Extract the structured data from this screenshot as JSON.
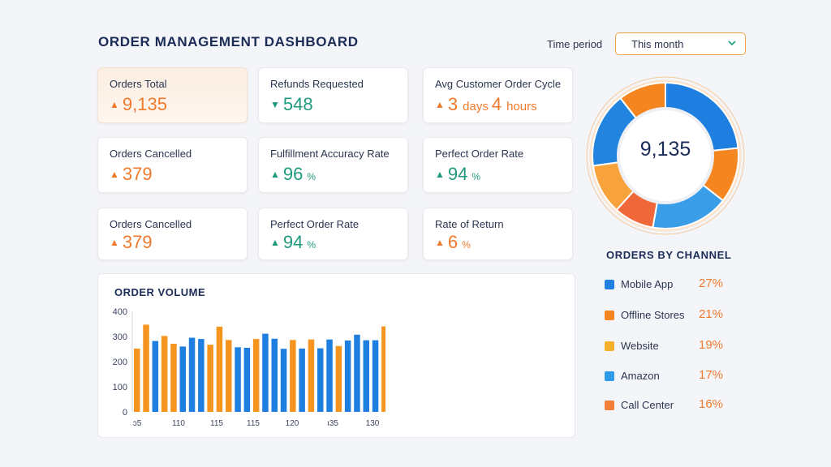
{
  "header": {
    "title": "ORDER MANAGEMENT DASHBOARD",
    "period_label": "Time period",
    "period_value": "This month"
  },
  "cards": [
    {
      "label": "Orders Total",
      "arrow": "▲",
      "value": "9,135",
      "trend": "up"
    },
    {
      "label": "Refunds Requested",
      "arrow": "▼",
      "value": "548",
      "trend": "down"
    },
    {
      "label": "Avg Customer Order Cycle",
      "arrow": "▲",
      "value1": "3",
      "unit1": "days",
      "value2": "4",
      "unit2": "hours",
      "trend": "up"
    },
    {
      "label": "Orders Cancelled",
      "arrow": "▲",
      "value": "379",
      "trend": "up"
    },
    {
      "label": "Fulfillment Accuracy Rate",
      "arrow": "▲",
      "value": "96",
      "unit": "%",
      "trend": "up"
    },
    {
      "label": "Perfect Order Rate",
      "arrow": "▲",
      "value": "94",
      "unit": "%",
      "trend": "up"
    },
    {
      "label": "Orders Cancelled",
      "arrow": "▲",
      "value": "379",
      "trend": "up"
    },
    {
      "label": "Perfect Order Rate",
      "arrow": "▲",
      "value": "94",
      "unit": "%",
      "trend": "up"
    },
    {
      "label": "Rate of Return",
      "arrow": "▲",
      "value": "6",
      "unit": "%",
      "trend": "up"
    }
  ],
  "colors": {
    "orange": "#f07a2c",
    "teal": "#1f9a7e",
    "bar_orange": "#f5951f",
    "bar_blue": "#1f7fe0"
  },
  "donut": {
    "center_value": "9,135"
  },
  "legend": {
    "title": "ORDERS BY CHANNEL",
    "items": [
      {
        "label": "Mobile App",
        "pct": "27%",
        "color": "#1f7fe0"
      },
      {
        "label": "Offline Stores",
        "pct": "21%",
        "color": "#f5861f"
      },
      {
        "label": "Website",
        "pct": "19%",
        "color": "#f7b02e"
      },
      {
        "label": "Amazon",
        "pct": "17%",
        "color": "#2c9be8"
      },
      {
        "label": "Call Center",
        "pct": "16%",
        "color": "#f47f3a"
      }
    ]
  },
  "chart_data": {
    "type": "bar",
    "title": "ORDER VOLUME",
    "ylim": [
      0,
      400
    ],
    "yticks": [
      "400",
      "300",
      "200",
      "100",
      "0"
    ],
    "xtick_labels": [
      "ɔ5",
      "110",
      "115",
      "115",
      "120",
      "ı35",
      "130"
    ],
    "values": [
      252,
      347,
      282,
      302,
      271,
      260,
      295,
      290,
      267,
      339,
      286,
      257,
      255,
      290,
      311,
      291,
      251,
      286,
      252,
      288,
      253,
      288,
      262,
      284,
      307,
      285,
      285,
      340
    ],
    "bar_colors": [
      "o",
      "o",
      "b",
      "o",
      "o",
      "b",
      "b",
      "b",
      "o",
      "o",
      "o",
      "b",
      "b",
      "o",
      "b",
      "b",
      "b",
      "o",
      "b",
      "o",
      "b",
      "b",
      "o",
      "b",
      "b",
      "b",
      "b",
      "o"
    ],
    "grid": false
  }
}
